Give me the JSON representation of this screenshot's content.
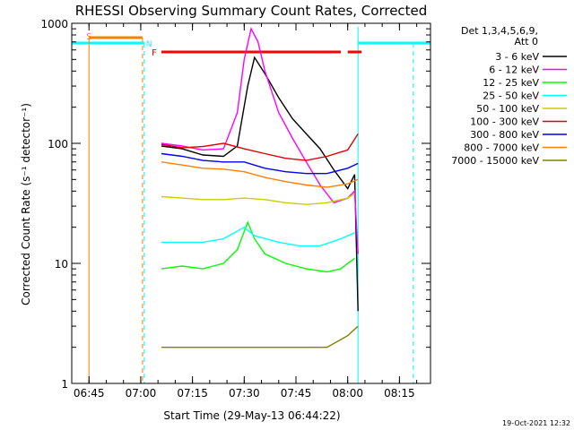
{
  "chart_data": {
    "type": "line",
    "title": "RHESSI Observing Summary Count Rates, Corrected",
    "xlabel": "Start Time (29-May-13 06:44:22)",
    "ylabel": "Corrected Count Rate (s⁻¹ detector⁻¹)",
    "y_scale": "log",
    "xlim": [
      "06:40",
      "08:24"
    ],
    "ylim": [
      1,
      1000
    ],
    "x_ticks": [
      "06:45",
      "07:00",
      "07:15",
      "07:30",
      "07:45",
      "08:00",
      "08:15"
    ],
    "y_ticks": [
      "1",
      "10",
      "100",
      "1000"
    ],
    "legend_position": "top-right",
    "legend_header": [
      "Det 1,3,4,5,6,9,",
      "Att 0"
    ],
    "footer_date": "19-Oct-2021 12:32",
    "annotations": {
      "saa_label": "S",
      "night_label": "N",
      "flare_label": "F",
      "saa_span": [
        "06:45",
        "07:00"
      ],
      "flare_span": [
        "07:06",
        "08:04"
      ],
      "night_spans": [
        [
          "06:40",
          "07:01"
        ],
        [
          "08:03",
          "08:24"
        ]
      ]
    },
    "series": [
      {
        "name": "3 - 6 keV",
        "color": "#000000",
        "points": [
          [
            "07:06",
            95
          ],
          [
            "07:12",
            90
          ],
          [
            "07:18",
            80
          ],
          [
            "07:24",
            78
          ],
          [
            "07:28",
            95
          ],
          [
            "07:31",
            300
          ],
          [
            "07:33",
            520
          ],
          [
            "07:36",
            380
          ],
          [
            "07:40",
            240
          ],
          [
            "07:44",
            160
          ],
          [
            "07:48",
            120
          ],
          [
            "07:52",
            90
          ],
          [
            "07:56",
            60
          ],
          [
            "08:00",
            42
          ],
          [
            "08:02",
            55
          ],
          [
            "08:03",
            4
          ]
        ]
      },
      {
        "name": "6 - 12 keV",
        "color": "#ff00ff",
        "points": [
          [
            "07:06",
            100
          ],
          [
            "07:12",
            95
          ],
          [
            "07:18",
            88
          ],
          [
            "07:24",
            90
          ],
          [
            "07:28",
            180
          ],
          [
            "07:30",
            500
          ],
          [
            "07:32",
            900
          ],
          [
            "07:34",
            700
          ],
          [
            "07:36",
            400
          ],
          [
            "07:40",
            180
          ],
          [
            "07:44",
            110
          ],
          [
            "07:48",
            70
          ],
          [
            "07:52",
            45
          ],
          [
            "07:56",
            32
          ],
          [
            "08:00",
            35
          ],
          [
            "08:02",
            40
          ],
          [
            "08:03",
            12
          ]
        ]
      },
      {
        "name": "12 - 25 keV",
        "color": "#00ff00",
        "points": [
          [
            "07:06",
            9
          ],
          [
            "07:12",
            9.5
          ],
          [
            "07:18",
            9
          ],
          [
            "07:24",
            10
          ],
          [
            "07:28",
            13
          ],
          [
            "07:31",
            22
          ],
          [
            "07:33",
            16
          ],
          [
            "07:36",
            12
          ],
          [
            "07:42",
            10
          ],
          [
            "07:48",
            9
          ],
          [
            "07:54",
            8.5
          ],
          [
            "07:58",
            9
          ],
          [
            "08:00",
            10
          ],
          [
            "08:02",
            11
          ]
        ]
      },
      {
        "name": "25 - 50 keV",
        "color": "#00ffff",
        "points": [
          [
            "07:06",
            15
          ],
          [
            "07:12",
            15
          ],
          [
            "07:18",
            15
          ],
          [
            "07:24",
            16
          ],
          [
            "07:30",
            20
          ],
          [
            "07:33",
            17
          ],
          [
            "07:40",
            15
          ],
          [
            "07:46",
            14
          ],
          [
            "07:52",
            14
          ],
          [
            "07:58",
            16
          ],
          [
            "08:02",
            18
          ]
        ]
      },
      {
        "name": "50 - 100 keV",
        "color": "#cccc00",
        "points": [
          [
            "07:06",
            36
          ],
          [
            "07:12",
            35
          ],
          [
            "07:18",
            34
          ],
          [
            "07:24",
            34
          ],
          [
            "07:30",
            35
          ],
          [
            "07:36",
            34
          ],
          [
            "07:42",
            32
          ],
          [
            "07:48",
            31
          ],
          [
            "07:54",
            32
          ],
          [
            "08:00",
            35
          ],
          [
            "08:02",
            38
          ]
        ]
      },
      {
        "name": "100 - 300 keV",
        "color": "#dd0000",
        "points": [
          [
            "07:06",
            98
          ],
          [
            "07:12",
            92
          ],
          [
            "07:18",
            94
          ],
          [
            "07:24",
            100
          ],
          [
            "07:30",
            90
          ],
          [
            "07:36",
            82
          ],
          [
            "07:42",
            75
          ],
          [
            "07:48",
            72
          ],
          [
            "07:54",
            78
          ],
          [
            "08:00",
            88
          ],
          [
            "08:03",
            120
          ]
        ]
      },
      {
        "name": "300 - 800 keV",
        "color": "#0000ee",
        "points": [
          [
            "07:06",
            82
          ],
          [
            "07:12",
            78
          ],
          [
            "07:18",
            72
          ],
          [
            "07:24",
            70
          ],
          [
            "07:30",
            70
          ],
          [
            "07:36",
            62
          ],
          [
            "07:42",
            58
          ],
          [
            "07:48",
            56
          ],
          [
            "07:54",
            56
          ],
          [
            "08:00",
            62
          ],
          [
            "08:03",
            68
          ]
        ]
      },
      {
        "name": "800 - 7000 keV",
        "color": "#ff8000",
        "points": [
          [
            "07:06",
            70
          ],
          [
            "07:12",
            66
          ],
          [
            "07:18",
            62
          ],
          [
            "07:24",
            61
          ],
          [
            "07:30",
            58
          ],
          [
            "07:36",
            52
          ],
          [
            "07:42",
            48
          ],
          [
            "07:48",
            45
          ],
          [
            "07:54",
            43
          ],
          [
            "08:00",
            46
          ],
          [
            "08:03",
            50
          ]
        ]
      },
      {
        "name": "7000 - 15000 keV",
        "color": "#808000",
        "points": [
          [
            "07:06",
            2
          ],
          [
            "07:12",
            2
          ],
          [
            "07:18",
            2
          ],
          [
            "07:24",
            2
          ],
          [
            "07:30",
            2
          ],
          [
            "07:36",
            2
          ],
          [
            "07:42",
            2
          ],
          [
            "07:48",
            2
          ],
          [
            "07:54",
            2
          ],
          [
            "08:00",
            2.5
          ],
          [
            "08:03",
            3
          ]
        ]
      }
    ]
  }
}
